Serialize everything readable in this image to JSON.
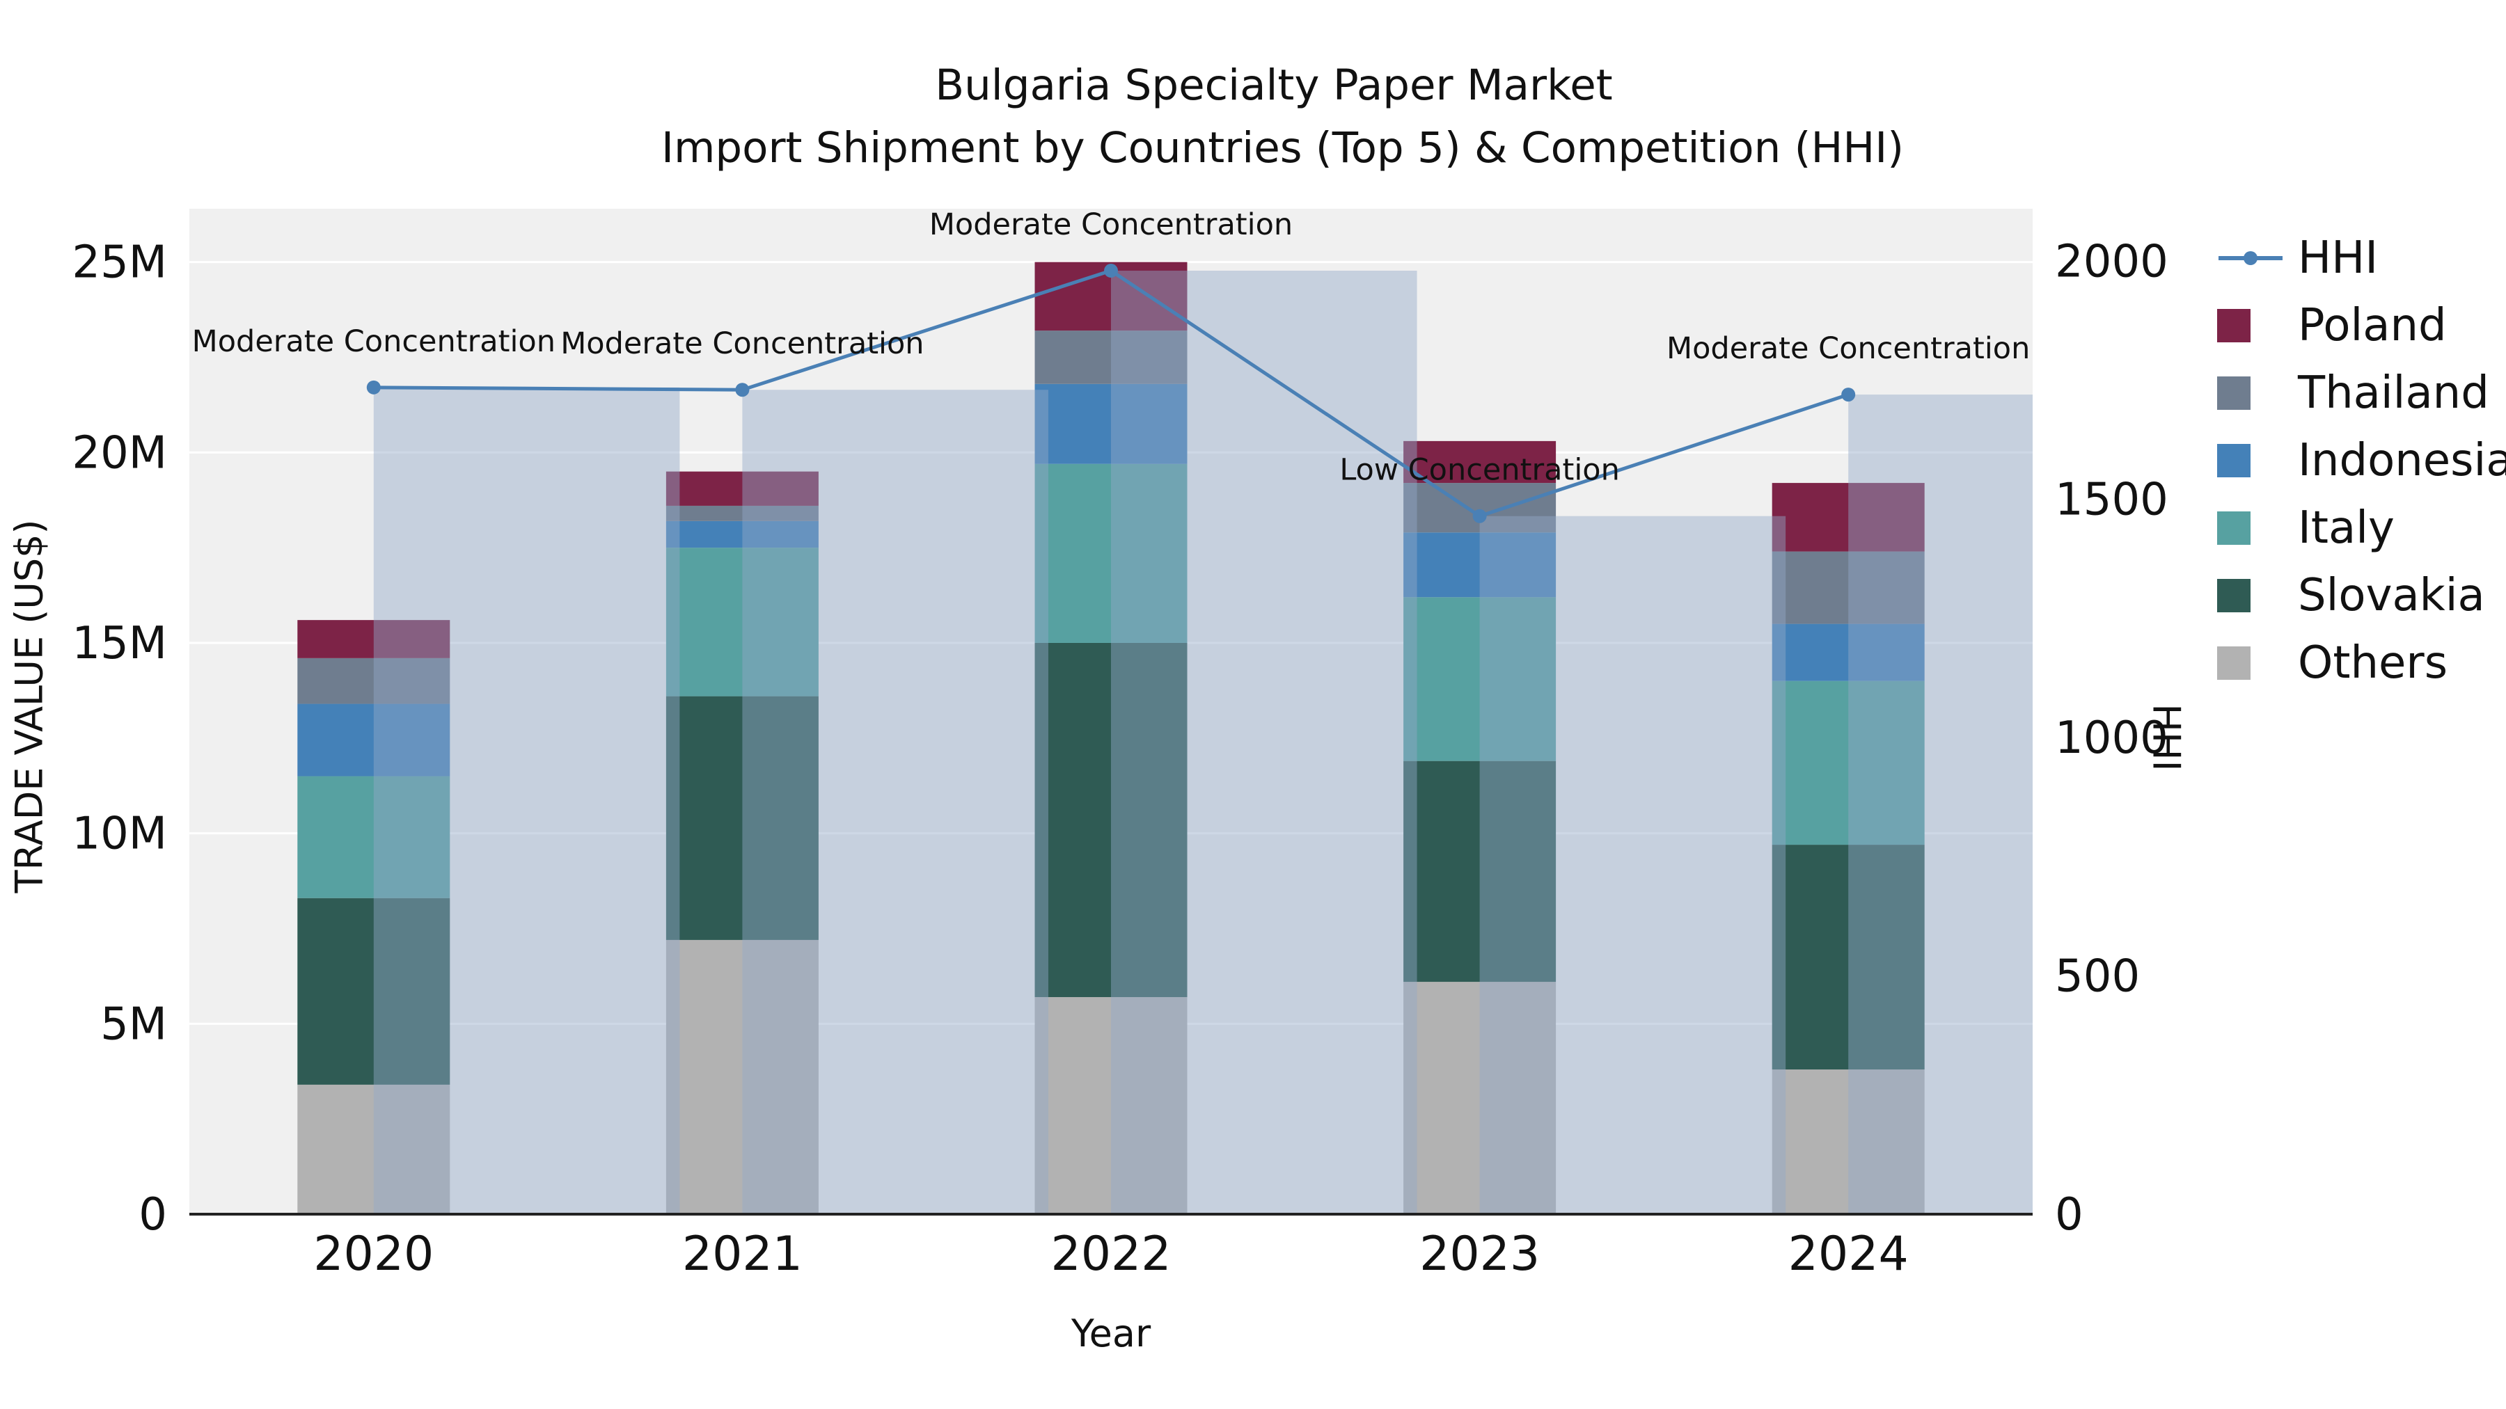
{
  "title": {
    "line1": "Bulgaria Specialty Paper Market",
    "line2": "Import Shipment by Countries (Top 5) & Competition (HHI)"
  },
  "axes": {
    "x_title": "Year",
    "y_left_title": "TRADE VALUE (US$)",
    "y_right_title": "HHI"
  },
  "legend": {
    "items": [
      {
        "label": "HHI",
        "marker": "line",
        "color": "#4a80b5"
      },
      {
        "label": "Poland",
        "marker": "square",
        "color": "#7d2347"
      },
      {
        "label": "Thailand",
        "marker": "square",
        "color": "#6f7d8f"
      },
      {
        "label": "Indonesia",
        "marker": "square",
        "color": "#4481b8"
      },
      {
        "label": "Italy",
        "marker": "square",
        "color": "#57a1a1"
      },
      {
        "label": "Slovakia",
        "marker": "square",
        "color": "#2f5b54"
      },
      {
        "label": "Others",
        "marker": "square",
        "color": "#b2b2b2"
      }
    ]
  },
  "chart_data": {
    "type": "bar",
    "subtype": "stacked-bars-with-line-overlay",
    "title": "Bulgaria Specialty Paper Market — Import Shipment by Countries (Top 5) & Competition (HHI)",
    "categories": [
      "2020",
      "2021",
      "2022",
      "2023",
      "2024"
    ],
    "unit": "million US$",
    "stack_order_bottom_to_top": [
      "Others",
      "Slovakia",
      "Italy",
      "Indonesia",
      "Thailand",
      "Poland"
    ],
    "series": [
      {
        "name": "Poland",
        "color": "#7d2347",
        "values": [
          1.0,
          0.9,
          1.8,
          1.1,
          1.8
        ]
      },
      {
        "name": "Thailand",
        "color": "#6f7d8f",
        "values": [
          1.2,
          0.4,
          1.4,
          1.3,
          1.9
        ]
      },
      {
        "name": "Indonesia",
        "color": "#4481b8",
        "values": [
          1.9,
          0.7,
          2.1,
          1.7,
          1.5
        ]
      },
      {
        "name": "Italy",
        "color": "#57a1a1",
        "values": [
          3.2,
          3.9,
          4.7,
          4.3,
          4.3
        ]
      },
      {
        "name": "Slovakia",
        "color": "#2f5b54",
        "values": [
          4.9,
          6.4,
          9.3,
          5.8,
          5.9
        ]
      },
      {
        "name": "Others",
        "color": "#b2b2b2",
        "values": [
          3.4,
          7.2,
          5.7,
          6.1,
          3.8
        ]
      }
    ],
    "totals_M": [
      15.6,
      19.5,
      25.0,
      20.3,
      19.2
    ],
    "line_series": {
      "name": "HHI",
      "axis": "right",
      "color": "#4a80b5",
      "values": [
        1735,
        1730,
        1980,
        1465,
        1720
      ]
    },
    "hhi_bars": {
      "color": "rgba(146,168,199,0.45)"
    },
    "concentration_labels": [
      "Moderate Concentration",
      "Moderate Concentration",
      "Moderate Concentration",
      "Low Concentration",
      "Moderate Concentration"
    ],
    "y_left": {
      "label": "TRADE VALUE (US$)",
      "tick_labels": [
        "0",
        "5M",
        "10M",
        "15M",
        "20M",
        "25M"
      ],
      "tick_values_M": [
        0,
        5,
        10,
        15,
        20,
        25
      ],
      "range_M": [
        0,
        26.4
      ]
    },
    "y_right": {
      "label": "HHI",
      "tick_labels": [
        "0",
        "500",
        "1000",
        "1500",
        "2000"
      ],
      "tick_values": [
        0,
        500,
        1000,
        1500,
        2000
      ],
      "range": [
        0,
        2110
      ]
    },
    "x_label": "Year",
    "grid": true,
    "legend_position": "right"
  }
}
